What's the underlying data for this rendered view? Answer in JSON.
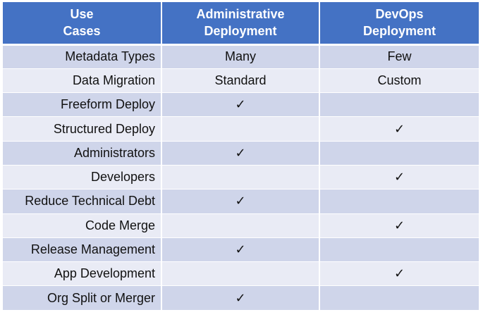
{
  "table": {
    "headers": [
      {
        "line1": "Use",
        "line2": "Cases"
      },
      {
        "line1": "Administrative",
        "line2": "Deployment"
      },
      {
        "line1": "DevOps",
        "line2": "Deployment"
      }
    ],
    "rows": [
      {
        "use_case": "Metadata Types",
        "admin": "Many",
        "devops": "Few"
      },
      {
        "use_case": "Data Migration",
        "admin": "Standard",
        "devops": "Custom"
      },
      {
        "use_case": "Freeform Deploy",
        "admin": "✓",
        "devops": ""
      },
      {
        "use_case": "Structured Deploy",
        "admin": "",
        "devops": "✓"
      },
      {
        "use_case": "Administrators",
        "admin": "✓",
        "devops": ""
      },
      {
        "use_case": "Developers",
        "admin": "",
        "devops": "✓"
      },
      {
        "use_case": "Reduce Technical Debt",
        "admin": "✓",
        "devops": ""
      },
      {
        "use_case": "Code Merge",
        "admin": "",
        "devops": "✓"
      },
      {
        "use_case": "Release Management",
        "admin": "✓",
        "devops": ""
      },
      {
        "use_case": "App Development",
        "admin": "",
        "devops": "✓"
      },
      {
        "use_case": "Org Split or Merger",
        "admin": "✓",
        "devops": ""
      }
    ]
  },
  "colors": {
    "header_bg": "#4472c4",
    "header_text": "#ffffff",
    "row_dark": "#cfd5ea",
    "row_light": "#e9ebf5"
  }
}
